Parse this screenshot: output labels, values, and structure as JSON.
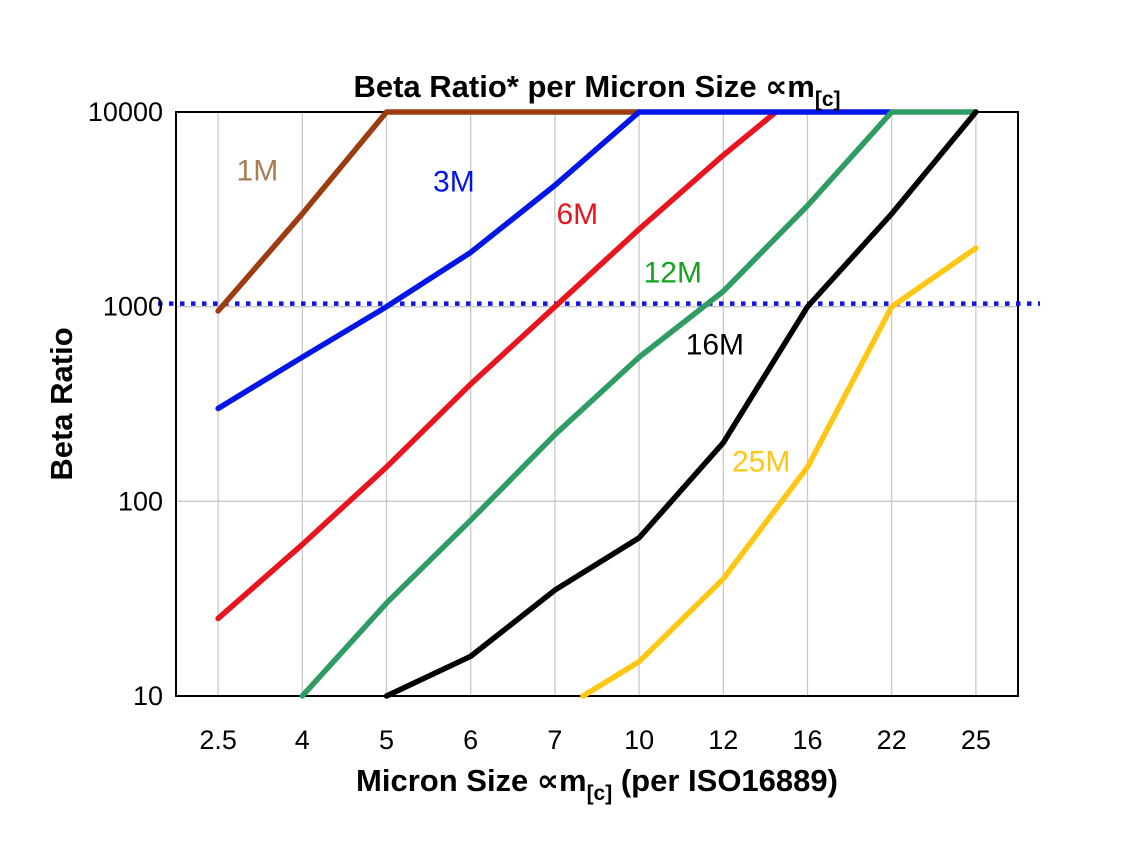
{
  "title": {
    "main": "Beta Ratio* per Micron Size ",
    "symbol": "∝m",
    "subscript": "[c]"
  },
  "x_axis": {
    "label_prefix": "Micron Size ",
    "symbol": "∝m",
    "subscript": "[c]",
    "label_suffix": " (per ISO16889)",
    "tick_labels": [
      "2.5",
      "4",
      "5",
      "6",
      "7",
      "10",
      "12",
      "16",
      "22",
      "25"
    ]
  },
  "y_axis": {
    "label": "Beta Ratio",
    "tick_labels": [
      "10000",
      "1000",
      "100",
      "10"
    ],
    "tick_values": [
      10000,
      1000,
      100,
      10
    ]
  },
  "chart_data": {
    "type": "line",
    "title": "Beta Ratio* per Micron Size ∝m[c]",
    "xlabel": "Micron Size ∝m[c] (per ISO16889)",
    "ylabel": "Beta Ratio",
    "x_scale": "categorical",
    "y_scale": "log",
    "categories": [
      2.5,
      4,
      5,
      6,
      7,
      10,
      12,
      16,
      22,
      25
    ],
    "ylim": [
      10,
      10000
    ],
    "grid": true,
    "gridline_values": [
      100,
      1000
    ],
    "legend_position": "inline-labels",
    "reference_line": {
      "value": 1000,
      "style": "dotted",
      "color": "#1414E6"
    },
    "series": [
      {
        "name": "6M",
        "color": "#E8141E",
        "label_color": "#E8141E",
        "label_anchor": {
          "x": 7.8,
          "y": 3000
        },
        "points": [
          [
            2.5,
            25
          ],
          [
            4,
            60
          ],
          [
            5,
            150
          ],
          [
            6,
            400
          ],
          [
            7,
            1000
          ],
          [
            10,
            2500
          ],
          [
            12,
            6000
          ],
          [
            14.5,
            10000
          ]
        ]
      },
      {
        "name": "1M",
        "color": "#9C3C10",
        "label_color": "#A87C52",
        "label_anchor": {
          "x": 3.2,
          "y": 5000
        },
        "points": [
          [
            2.5,
            950
          ],
          [
            4,
            3000
          ],
          [
            5,
            10000
          ],
          [
            10,
            10000
          ]
        ]
      },
      {
        "name": "3M",
        "color": "#0016E6",
        "label_color": "#0016E6",
        "label_anchor": {
          "x": 5.8,
          "y": 4400
        },
        "points": [
          [
            2.5,
            300
          ],
          [
            4,
            550
          ],
          [
            5,
            1000
          ],
          [
            6,
            1900
          ],
          [
            7,
            4200
          ],
          [
            10,
            10000
          ],
          [
            22,
            10000
          ]
        ]
      },
      {
        "name": "12M",
        "color": "#2E9C63",
        "label_color": "#16A11F",
        "label_anchor": {
          "x": 10.8,
          "y": 1500
        },
        "points": [
          [
            4,
            10
          ],
          [
            5,
            30
          ],
          [
            6,
            80
          ],
          [
            7,
            220
          ],
          [
            10,
            550
          ],
          [
            12,
            1200
          ],
          [
            16,
            3300
          ],
          [
            22,
            10000
          ],
          [
            25,
            10000
          ]
        ]
      },
      {
        "name": "16M",
        "color": "#000000",
        "label_color": "#000000",
        "label_anchor": {
          "x": 11.8,
          "y": 640
        },
        "points": [
          [
            5,
            10
          ],
          [
            6,
            16
          ],
          [
            7,
            35
          ],
          [
            10,
            65
          ],
          [
            12,
            200
          ],
          [
            16,
            1000
          ],
          [
            22,
            3000
          ],
          [
            25,
            10000
          ]
        ]
      },
      {
        "name": "25M",
        "color": "#FFC613",
        "label_color": "#FFC613",
        "label_anchor": {
          "x": 13.8,
          "y": 160
        },
        "points": [
          [
            8,
            10
          ],
          [
            10,
            15
          ],
          [
            12,
            40
          ],
          [
            16,
            150
          ],
          [
            22,
            1000
          ],
          [
            25,
            2000
          ]
        ]
      }
    ]
  }
}
